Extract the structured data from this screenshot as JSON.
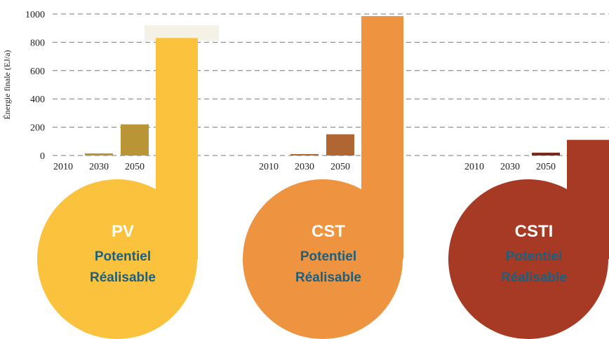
{
  "chart_data": {
    "type": "bar",
    "y_label": "Énergie finale (EJ/a)",
    "ylim": [
      0,
      1000
    ],
    "yticks": [
      0,
      200,
      400,
      600,
      800,
      1000
    ],
    "grid": true,
    "categories": [
      "2010",
      "2030",
      "2050"
    ],
    "groups": [
      {
        "name": "PV",
        "color": "#fbc23e",
        "bar_color": "#b99535",
        "name_color": "#ffffff",
        "values": [
          0,
          15,
          220
        ],
        "potential": 830,
        "potential_lines": [
          "Potentiel",
          "Réalisable"
        ]
      },
      {
        "name": "CST",
        "color": "#ee9340",
        "bar_color": "#b06632",
        "name_color": "#ffffff",
        "values": [
          0,
          10,
          150
        ],
        "potential": 985,
        "potential_lines": [
          "Potentiel",
          "Réalisable"
        ]
      },
      {
        "name": "CSTI",
        "color": "#a63a24",
        "bar_color": "#7a2a1c",
        "name_color": "#ffffff",
        "values": [
          0,
          0,
          20
        ],
        "potential": 110,
        "potential_lines": [
          "Potentiel",
          "Réalisable"
        ]
      }
    ]
  }
}
